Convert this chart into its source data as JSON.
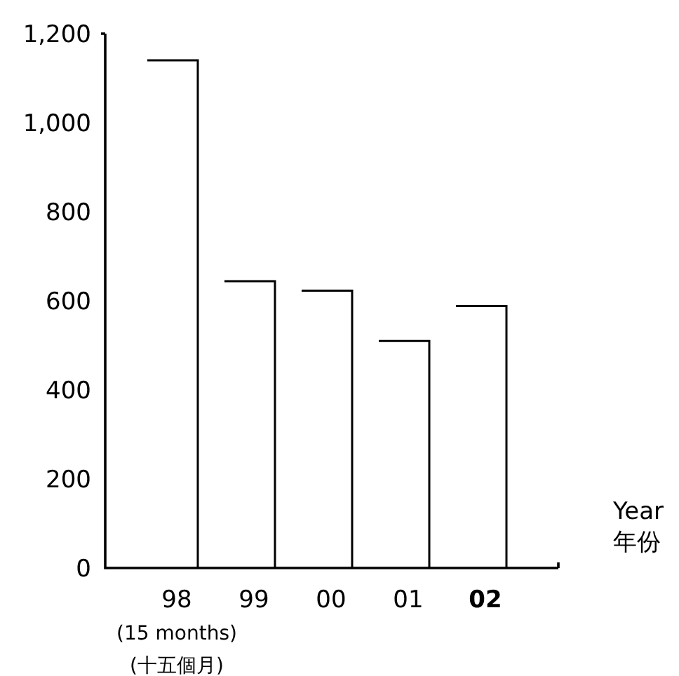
{
  "chart_data": {
    "type": "bar",
    "categories": [
      "98",
      "99",
      "00",
      "01",
      "**02**"
    ],
    "values": [
      1140,
      644,
      623,
      510,
      588
    ],
    "color": "#000000",
    "ylim": [
      0,
      1200
    ],
    "yticks": [
      0,
      200,
      400,
      600,
      800,
      {
        "value": 1000,
        "label": "1,000"
      },
      {
        "value": 1200,
        "label": "1,200"
      }
    ],
    "xlabel": "Year\n年份",
    "annotations": [
      "(15 months)",
      "(十五個月)"
    ]
  }
}
